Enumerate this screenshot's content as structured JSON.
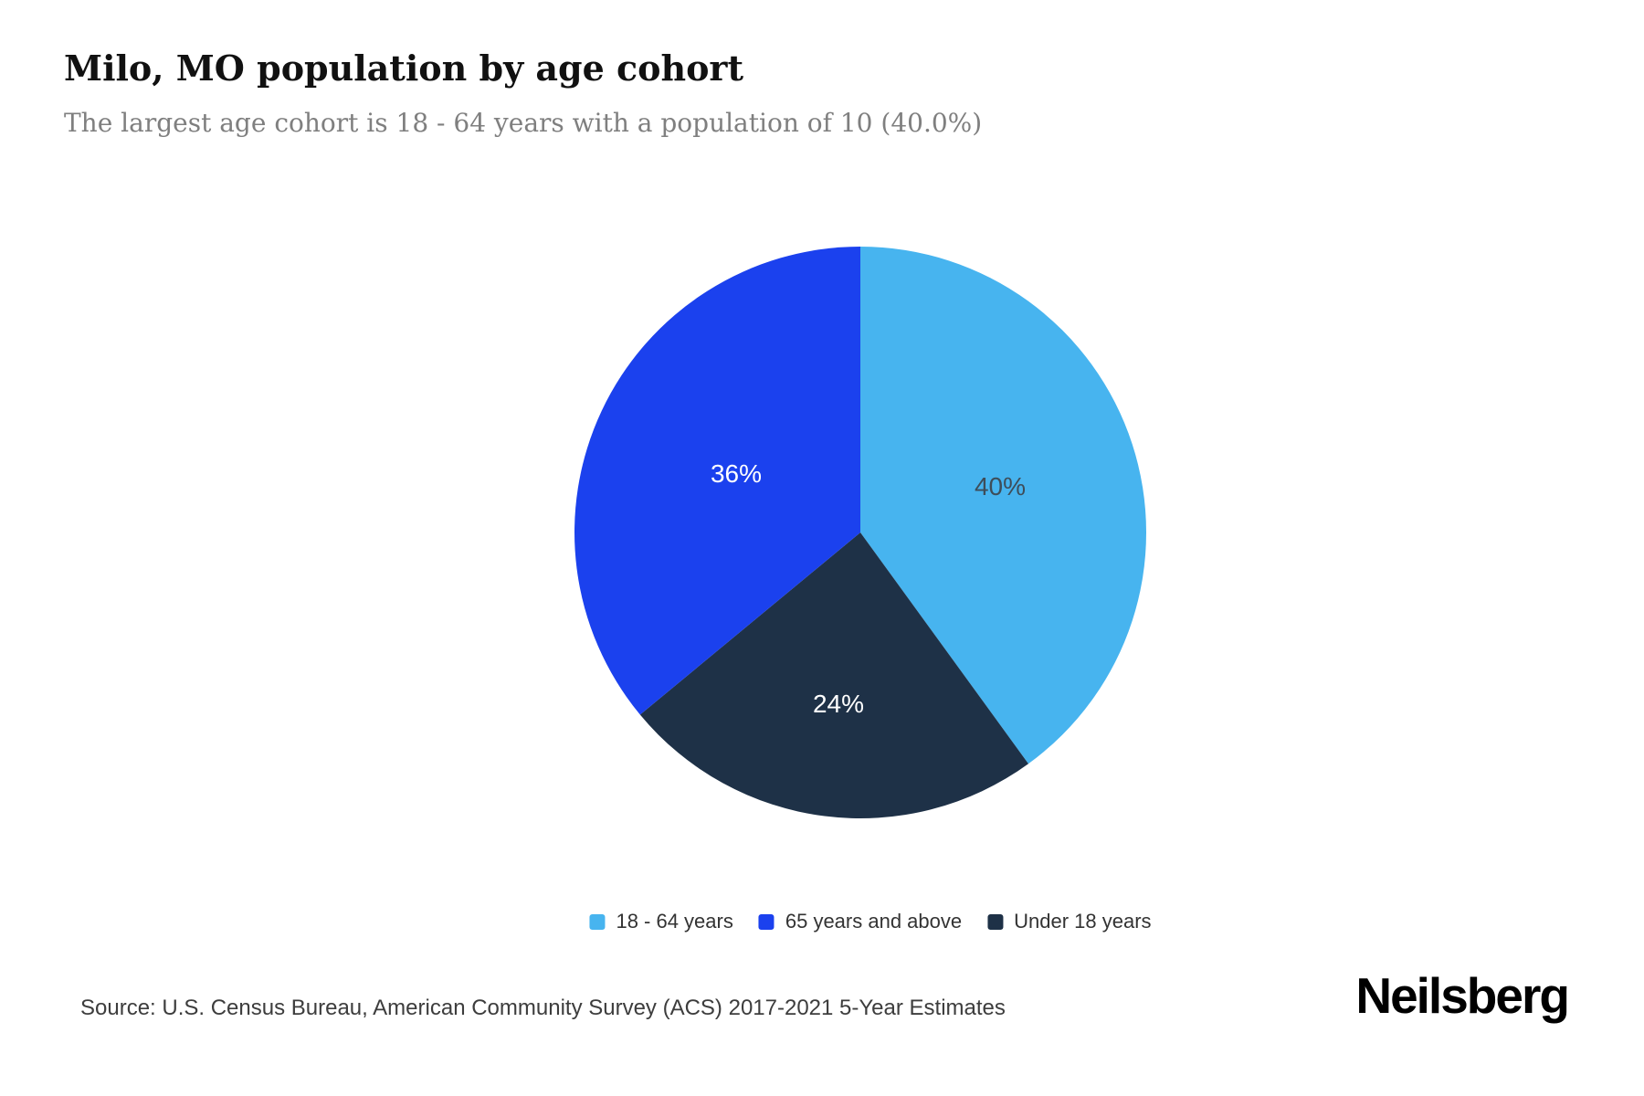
{
  "chart_data": {
    "type": "pie",
    "title": "Milo, MO population by age cohort",
    "subtitle": "The largest age cohort is 18 - 64 years with a population of 10 (40.0%)",
    "slices": [
      {
        "label": "18 - 64 years",
        "value": 40,
        "percent_label": "40%",
        "color": "#47b4ef",
        "percent_label_color": "#3e4d59"
      },
      {
        "label": "65 years and above",
        "value": 36,
        "percent_label": "36%",
        "color": "#1b41ee",
        "percent_label_color": "#ffffff"
      },
      {
        "label": "Under 18 years",
        "value": 24,
        "percent_label": "24%",
        "color": "#1e3147",
        "percent_label_color": "#ffffff"
      }
    ],
    "start_angle_deg": 0,
    "clockwise_draw_order": [
      0,
      2,
      1
    ],
    "labels_position": "inside",
    "legend_position": "bottom",
    "background": "#ffffff"
  },
  "footer": {
    "source": "Source: U.S. Census Bureau, American Community Survey (ACS) 2017-2021 5-Year Estimates",
    "brand": "Neilsberg"
  }
}
